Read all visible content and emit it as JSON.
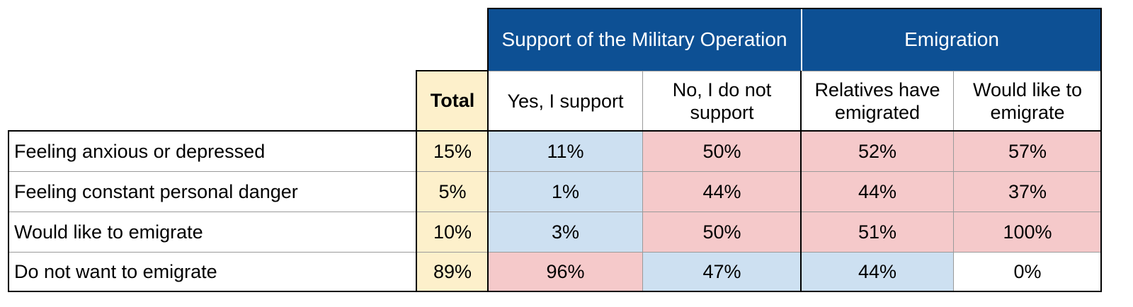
{
  "chart_data": {
    "type": "table",
    "column_groups": [
      {
        "name": "Support of the Military Operation",
        "columns": [
          "Yes, I support",
          "No, I do not support"
        ]
      },
      {
        "name": "Emigration",
        "columns": [
          "Relatives have emigrated",
          "Would like to emigrate"
        ]
      }
    ],
    "total_header": "Total",
    "columns": [
      "Yes, I support",
      "No, I do not support",
      "Relatives have emigrated",
      "Would like to emigrate"
    ],
    "rows": [
      {
        "label": "Feeling anxious or depressed",
        "total": "15%",
        "values": [
          "11%",
          "50%",
          "52%",
          "57%"
        ],
        "shades": [
          "blue",
          "pink",
          "pink",
          "pink"
        ]
      },
      {
        "label": "Feeling constant personal danger",
        "total": "5%",
        "values": [
          "1%",
          "44%",
          "44%",
          "37%"
        ],
        "shades": [
          "blue",
          "pink",
          "pink",
          "pink"
        ]
      },
      {
        "label": "Would like to emigrate",
        "total": "10%",
        "values": [
          "3%",
          "50%",
          "51%",
          "100%"
        ],
        "shades": [
          "blue",
          "pink",
          "pink",
          "pink"
        ]
      },
      {
        "label": "Do not want to emigrate",
        "total": "89%",
        "values": [
          "96%",
          "47%",
          "44%",
          "0%"
        ],
        "shades": [
          "pink",
          "blue",
          "blue",
          "white"
        ]
      }
    ],
    "colors": {
      "header": "#0d5094",
      "total": "#fdf0cb",
      "blue": "#cde0f1",
      "pink": "#f5c9ca",
      "white": "#ffffff"
    }
  }
}
